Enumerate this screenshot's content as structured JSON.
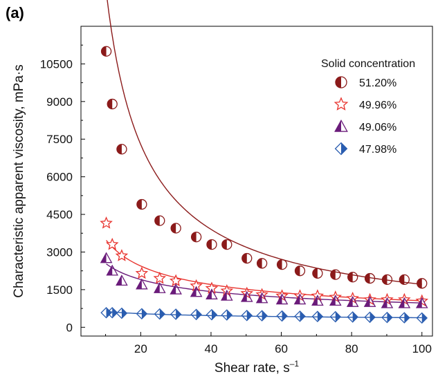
{
  "chart_data": {
    "type": "scatter",
    "panel_label": "(a)",
    "xlabel": "Shear rate, s",
    "xlabel_sup": "–1",
    "ylabel": "Characteristic apparent viscosity, mPa·s",
    "xlim": [
      3,
      103
    ],
    "ylim": [
      -350,
      12000
    ],
    "xticks": [
      20,
      40,
      60,
      80,
      100
    ],
    "yticks": [
      0,
      1500,
      3000,
      4500,
      6000,
      7500,
      9000,
      10500
    ],
    "xtick_labels": [
      "20",
      "40",
      "60",
      "80",
      "100"
    ],
    "ytick_labels": [
      "0",
      "1500",
      "3000",
      "4500",
      "6000",
      "7500",
      "9000",
      "10500"
    ],
    "legend_title": "Solid concentration",
    "legend_position": "top-right",
    "grid": false,
    "fit_lines": true,
    "series": [
      {
        "name": "51.20%",
        "color": "#8b1a1a",
        "marker": "circle-half",
        "x": [
          10.2,
          11.9,
          14.6,
          20.3,
          25.4,
          30.0,
          35.8,
          40.2,
          44.5,
          50.2,
          54.5,
          60.2,
          65.3,
          70.3,
          75.4,
          80.3,
          85.2,
          90.1,
          95.0,
          100.0
        ],
        "y": [
          11000,
          8900,
          7100,
          4900,
          4250,
          3950,
          3600,
          3300,
          3300,
          2750,
          2550,
          2500,
          2250,
          2150,
          2100,
          2000,
          1950,
          1900,
          1900,
          1750
        ],
        "fit": {
          "a": 108000,
          "b": 0.9
        }
      },
      {
        "name": "49.96%",
        "color": "#e8332e",
        "marker": "star",
        "x": [
          10.2,
          11.9,
          14.6,
          20.3,
          25.4,
          30.0,
          35.8,
          40.2,
          44.5,
          50.2,
          54.5,
          60.2,
          65.3,
          70.3,
          75.4,
          80.3,
          85.2,
          90.1,
          95.0,
          100.0
        ],
        "y": [
          4150,
          3300,
          2850,
          2150,
          1950,
          1850,
          1650,
          1550,
          1450,
          1350,
          1300,
          1250,
          1250,
          1250,
          1200,
          1150,
          1100,
          1100,
          1100,
          1050
        ],
        "fit": {
          "a": 11600,
          "b": 0.52
        }
      },
      {
        "name": "49.06%",
        "color": "#6a1b7a",
        "marker": "triangle-half",
        "x": [
          10.2,
          11.9,
          14.6,
          20.3,
          25.4,
          30.0,
          35.8,
          40.2,
          44.5,
          50.2,
          54.5,
          60.2,
          65.3,
          70.3,
          75.4,
          80.3,
          85.2,
          90.1,
          95.0,
          100.0
        ],
        "y": [
          2750,
          2250,
          1850,
          1700,
          1550,
          1500,
          1400,
          1300,
          1250,
          1200,
          1150,
          1100,
          1100,
          1050,
          1050,
          1000,
          1000,
          950,
          950,
          950
        ],
        "fit": {
          "a": 6700,
          "b": 0.42
        }
      },
      {
        "name": "47.98%",
        "color": "#2a5db0",
        "marker": "diamond-half",
        "x": [
          10.2,
          11.9,
          14.6,
          20.3,
          25.4,
          30.0,
          35.8,
          40.2,
          44.5,
          50.2,
          54.5,
          60.2,
          65.3,
          70.3,
          75.4,
          80.3,
          85.2,
          90.1,
          95.0,
          100.0
        ],
        "y": [
          580,
          580,
          560,
          540,
          530,
          520,
          510,
          500,
          490,
          470,
          460,
          450,
          440,
          430,
          420,
          410,
          400,
          390,
          380,
          370
        ],
        "fit": {
          "a": 1050,
          "b": 0.22
        }
      }
    ]
  }
}
